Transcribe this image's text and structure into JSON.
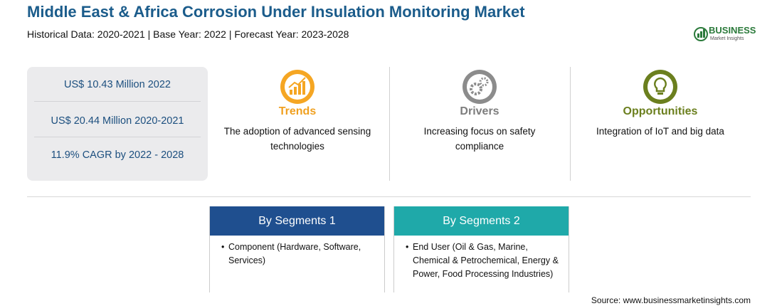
{
  "header": {
    "title": "Middle East & Africa Corrosion Under Insulation Monitoring Market",
    "subtitle": "Historical Data: 2020-2021 | Base Year: 2022 | Forecast Year: 2023-2028",
    "logo": {
      "name": "BUSINESS",
      "tagline": "Market Insights"
    }
  },
  "stats": [
    "US$ 10.43 Million 2022",
    "US$ 20.44 Million 2020-2021",
    "11.9% CAGR by 2022 - 2028"
  ],
  "factors": [
    {
      "heading": "Trends",
      "text": "The adoption of advanced sensing technologies"
    },
    {
      "heading": "Drivers",
      "text": "Increasing focus on safety compliance"
    },
    {
      "heading": "Opportunities",
      "text": "Integration of IoT and big data"
    }
  ],
  "segments": [
    {
      "heading": "By Segments 1",
      "items": [
        "Component (Hardware, Software, Services)"
      ]
    },
    {
      "heading": "By Segments 2",
      "items": [
        "End User (Oil & Gas, Marine, Chemical & Petrochemical, Energy & Power, Food Processing Industries)"
      ]
    }
  ],
  "source": "Source: www.businessmarketinsights.com"
}
